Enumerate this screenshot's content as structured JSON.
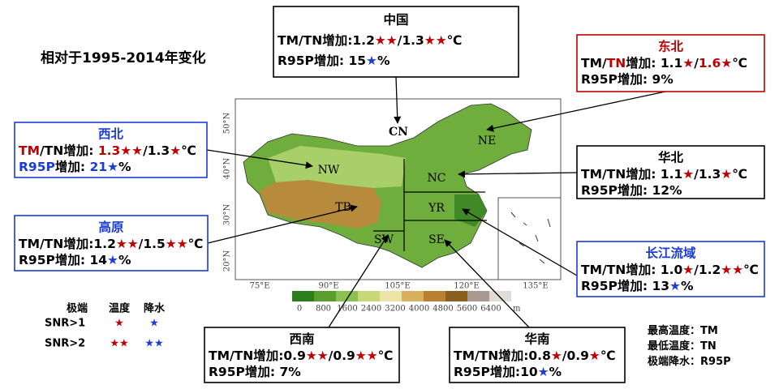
{
  "title": "相对于1995-2014年变化",
  "map": {
    "region_labels": [
      "CN",
      "NE",
      "NW",
      "NC",
      "TB",
      "YR",
      "SW",
      "SE"
    ],
    "lat_labels": [
      "50°N",
      "40°N",
      "30°N",
      "20°N"
    ],
    "lon_labels": [
      "75°E",
      "90°E",
      "105°E",
      "120°E",
      "135°E"
    ],
    "colorbar": {
      "labels": [
        "0",
        "800",
        "1600",
        "2400",
        "3200",
        "4000",
        "4800",
        "5600",
        "6400"
      ],
      "unit": "m"
    }
  },
  "boxes": [
    {
      "name": "中国",
      "name_color": "#000000",
      "border": "#000000",
      "lines": [
        [
          {
            "text": "TM/TN增加:1.2",
            "color": "#000000"
          },
          {
            "text": "★★",
            "color": "#c00000"
          },
          {
            "text": "/1.3",
            "color": "#000000"
          },
          {
            "text": "★★",
            "color": "#c00000"
          },
          {
            "text": "℃",
            "color": "#000000"
          }
        ],
        [
          {
            "text": "R95P增加: 15",
            "color": "#000000"
          },
          {
            "text": "★",
            "color": "#1a3cd8"
          },
          {
            "text": "%",
            "color": "#000000"
          }
        ]
      ]
    },
    {
      "name": "东北",
      "name_color": "#c00000",
      "border": "#c00000",
      "lines": [
        [
          {
            "text": "TM/",
            "color": "#000000"
          },
          {
            "text": "TN",
            "color": "#c00000"
          },
          {
            "text": "增加: 1.1",
            "color": "#000000"
          },
          {
            "text": "★",
            "color": "#c00000"
          },
          {
            "text": "/",
            "color": "#000000"
          },
          {
            "text": "1.6",
            "color": "#c00000"
          },
          {
            "text": "★",
            "color": "#c00000"
          },
          {
            "text": "℃",
            "color": "#000000"
          }
        ],
        [
          {
            "text": "R95P增加: 9%",
            "color": "#000000"
          }
        ]
      ]
    },
    {
      "name": "西北",
      "name_color": "#1a3cd8",
      "border": "#1a3cd8",
      "lines": [
        [
          {
            "text": "TM",
            "color": "#c00000"
          },
          {
            "text": "/TN增加: ",
            "color": "#000000"
          },
          {
            "text": "1.3",
            "color": "#c00000"
          },
          {
            "text": "★★",
            "color": "#c00000"
          },
          {
            "text": "/1.3",
            "color": "#000000"
          },
          {
            "text": "★",
            "color": "#c00000"
          },
          {
            "text": "℃",
            "color": "#000000"
          }
        ],
        [
          {
            "text": "R95P",
            "color": "#1a3cd8"
          },
          {
            "text": "增加: ",
            "color": "#000000"
          },
          {
            "text": "21",
            "color": "#1a3cd8"
          },
          {
            "text": "★",
            "color": "#1a3cd8"
          },
          {
            "text": "%",
            "color": "#000000"
          }
        ]
      ]
    },
    {
      "name": "华北",
      "name_color": "#000000",
      "border": "#000000",
      "lines": [
        [
          {
            "text": "TM/TN增加: 1.1",
            "color": "#000000"
          },
          {
            "text": "★",
            "color": "#c00000"
          },
          {
            "text": "/1.3",
            "color": "#000000"
          },
          {
            "text": "★",
            "color": "#c00000"
          },
          {
            "text": "℃",
            "color": "#000000"
          }
        ],
        [
          {
            "text": "R95P增加: 12%",
            "color": "#000000"
          }
        ]
      ]
    },
    {
      "name": "高原",
      "name_color": "#1a3cd8",
      "border": "#1a3cd8",
      "lines": [
        [
          {
            "text": "TM/TN增加:1.2",
            "color": "#000000"
          },
          {
            "text": "★★",
            "color": "#c00000"
          },
          {
            "text": "/1.5",
            "color": "#000000"
          },
          {
            "text": "★★",
            "color": "#c00000"
          },
          {
            "text": "℃",
            "color": "#000000"
          }
        ],
        [
          {
            "text": "R95P增加: 14",
            "color": "#000000"
          },
          {
            "text": "★",
            "color": "#1a3cd8"
          },
          {
            "text": "%",
            "color": "#000000"
          }
        ]
      ]
    },
    {
      "name": "长江流域",
      "name_color": "#1a3cd8",
      "border": "#1a3cd8",
      "lines": [
        [
          {
            "text": "TM/TN增加: 1.0",
            "color": "#000000"
          },
          {
            "text": "★",
            "color": "#c00000"
          },
          {
            "text": "/1.2",
            "color": "#000000"
          },
          {
            "text": "★★",
            "color": "#c00000"
          },
          {
            "text": "℃",
            "color": "#000000"
          }
        ],
        [
          {
            "text": "R95P增加: 13",
            "color": "#000000"
          },
          {
            "text": "★",
            "color": "#1a3cd8"
          },
          {
            "text": "%",
            "color": "#000000"
          }
        ]
      ]
    },
    {
      "name": "西南",
      "name_color": "#000000",
      "border": "#000000",
      "lines": [
        [
          {
            "text": "TM/TN增加:0.9",
            "color": "#000000"
          },
          {
            "text": "★★",
            "color": "#c00000"
          },
          {
            "text": "/0.9",
            "color": "#000000"
          },
          {
            "text": "★★",
            "color": "#c00000"
          },
          {
            "text": "℃",
            "color": "#000000"
          }
        ],
        [
          {
            "text": "R95P增加: 7%",
            "color": "#000000"
          }
        ]
      ]
    },
    {
      "name": "华南",
      "name_color": "#000000",
      "border": "#000000",
      "lines": [
        [
          {
            "text": "TM/TN增加:0.8",
            "color": "#000000"
          },
          {
            "text": "★",
            "color": "#c00000"
          },
          {
            "text": "/0.9",
            "color": "#000000"
          },
          {
            "text": "★",
            "color": "#c00000"
          },
          {
            "text": "℃",
            "color": "#000000"
          }
        ],
        [
          {
            "text": "R95P增加:10",
            "color": "#000000"
          },
          {
            "text": "★",
            "color": "#1a3cd8"
          },
          {
            "text": "%",
            "color": "#000000"
          }
        ]
      ]
    }
  ],
  "snr_legend": {
    "headers": [
      "极端",
      "温度",
      "降水"
    ],
    "rows": [
      {
        "label": "SNR>1",
        "temp": "★",
        "precip": "★"
      },
      {
        "label": "SNR>2",
        "temp": "★★",
        "precip": "★★"
      }
    ],
    "temp_color": "#c00000",
    "precip_color": "#1a3cd8"
  },
  "abbreviations": [
    {
      "term": "最高温度：",
      "abbr": "TM"
    },
    {
      "term": "最低温度：",
      "abbr": "TN"
    },
    {
      "term": "极端降水：",
      "abbr": "R95P"
    }
  ]
}
